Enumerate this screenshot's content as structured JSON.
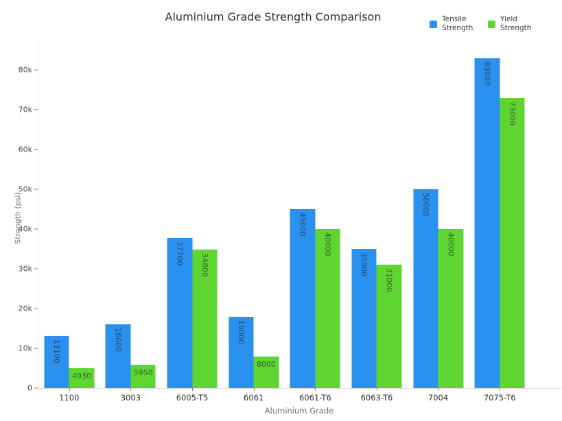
{
  "chart_data": {
    "type": "bar",
    "title": "Aluminium Grade Strength Comparison",
    "xlabel": "Aluminium Grade",
    "ylabel": "Strength (psi)",
    "categories": [
      "1100",
      "3003",
      "6005-T5",
      "6061",
      "6061-T6",
      "6063-T6",
      "7004",
      "7075-T6"
    ],
    "series": [
      {
        "name": "Tensile Strength",
        "color": "#2b91ee",
        "values": [
          13100,
          16000,
          37700,
          18000,
          45000,
          35000,
          50000,
          83000
        ]
      },
      {
        "name": "Yield Strength",
        "color": "#5ed531",
        "values": [
          4930,
          5950,
          34800,
          8000,
          40000,
          31000,
          40000,
          73000
        ]
      }
    ],
    "yaxis": {
      "ticks": [
        "0",
        "10k",
        "20k",
        "30k",
        "40k",
        "50k",
        "60k",
        "70k",
        "80k"
      ],
      "tick_values": [
        0,
        10000,
        20000,
        30000,
        40000,
        50000,
        60000,
        70000,
        80000
      ],
      "range": [
        0,
        86900
      ]
    },
    "grid": false,
    "bar_value_labels": true,
    "legend_position": "top-right"
  }
}
